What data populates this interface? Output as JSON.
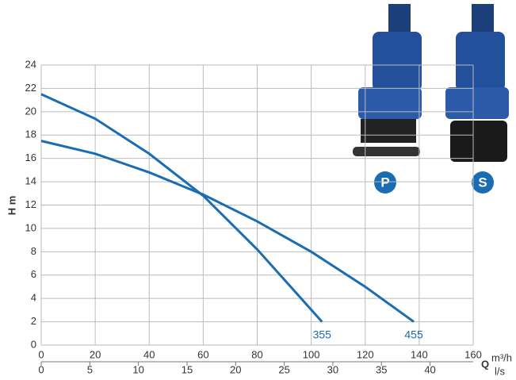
{
  "chart_data": {
    "type": "line",
    "y_label": "H  m",
    "x_label": "Q",
    "x_unit": "m³/h",
    "x2_unit": "l/s",
    "xlim": [
      0,
      160
    ],
    "xticks": [
      0,
      20,
      40,
      60,
      80,
      100,
      120,
      140,
      160
    ],
    "x2lim": [
      0,
      44.44
    ],
    "x2ticks": [
      0,
      5,
      10,
      15,
      20,
      25,
      30,
      35,
      40
    ],
    "ylim": [
      0,
      24
    ],
    "yticks": [
      0,
      2,
      4,
      6,
      8,
      10,
      12,
      14,
      16,
      18,
      20,
      22,
      24
    ],
    "grid": true,
    "series": [
      {
        "name": "355",
        "color": "#1b6db3",
        "x": [
          0,
          20,
          40,
          60,
          80,
          104
        ],
        "values": [
          21.5,
          19.4,
          16.4,
          12.8,
          8.2,
          2
        ]
      },
      {
        "name": "455",
        "color": "#1b6db3",
        "x": [
          0,
          20,
          40,
          60,
          80,
          100,
          120,
          138
        ],
        "values": [
          17.5,
          16.4,
          14.8,
          12.9,
          10.6,
          8,
          5,
          2
        ]
      }
    ],
    "badges": [
      "P",
      "S"
    ]
  }
}
